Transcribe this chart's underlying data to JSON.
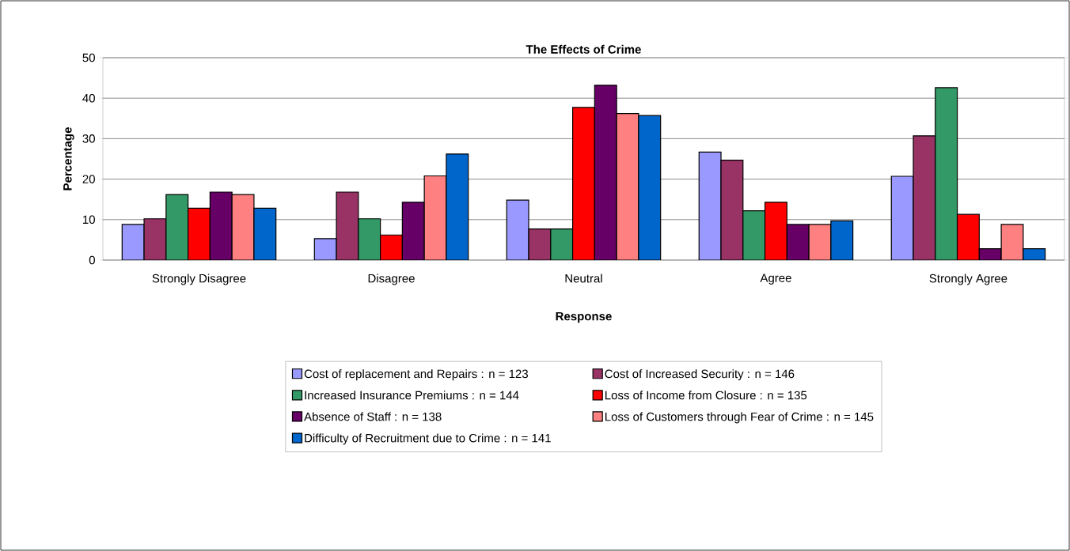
{
  "chart_data": {
    "type": "bar",
    "title": "The Effects of Crime",
    "xlabel": "Response",
    "ylabel": "Percentage",
    "categories": [
      "Strongly Disagree",
      "Disagree",
      "Neutral",
      "Agree",
      "Strongly Agree"
    ],
    "series": [
      {
        "name": "Cost of replacement and Repairs : n = 123",
        "color": "#9999ff",
        "values": [
          8.8,
          5.3,
          14.8,
          26.7,
          20.7
        ]
      },
      {
        "name": "Cost of Increased Security : n = 146",
        "color": "#993366",
        "values": [
          10.2,
          16.8,
          7.7,
          24.7,
          30.7
        ]
      },
      {
        "name": "Increased Insurance Premiums : n = 144",
        "color": "#339966",
        "values": [
          16.2,
          10.2,
          7.7,
          12.2,
          42.6
        ]
      },
      {
        "name": "Loss of Income from Closure : n = 135",
        "color": "#ff0000",
        "values": [
          12.8,
          6.2,
          37.7,
          14.3,
          11.3
        ]
      },
      {
        "name": "Absence of Staff : n = 138",
        "color": "#660066",
        "values": [
          16.8,
          14.3,
          43.2,
          8.8,
          2.8
        ]
      },
      {
        "name": "Loss of Customers through Fear of Crime : n = 145",
        "color": "#ff8080",
        "values": [
          16.2,
          20.8,
          36.2,
          8.8,
          8.8
        ]
      },
      {
        "name": "Difficulty of  Recruitment due to Crime : n = 141",
        "color": "#0066cc",
        "values": [
          12.8,
          26.2,
          35.7,
          9.7,
          2.8
        ]
      }
    ],
    "ylim": [
      0,
      50
    ],
    "yticks": [
      0,
      10,
      20,
      30,
      40,
      50
    ],
    "grid": "y",
    "legend": "bottom"
  }
}
